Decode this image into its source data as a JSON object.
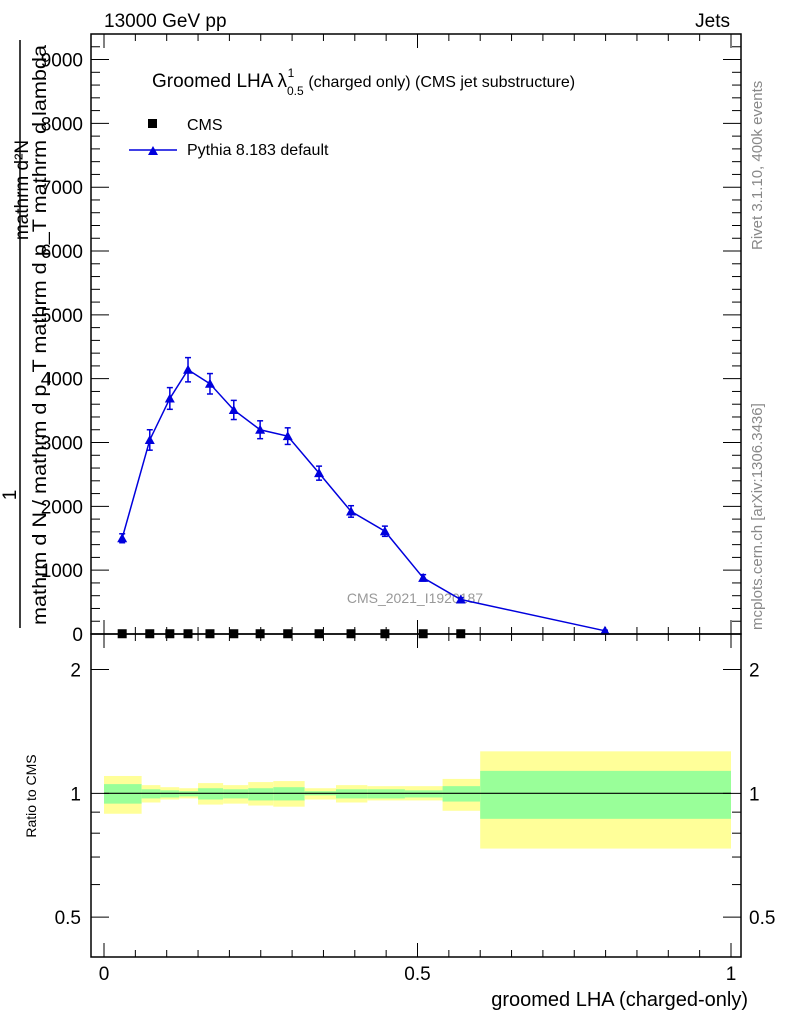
{
  "header": {
    "left": "13000 GeV pp",
    "right": "Jets"
  },
  "side_text": {
    "rivet": "Rivet 3.1.10,  400k events",
    "mcplots": "mcplots.cern.ch [arXiv:1306.3436]"
  },
  "watermark": "CMS_2021_I1920187",
  "chart_data": [
    {
      "type": "line",
      "title": "Groomed LHA",
      "title_symbol": "λ",
      "title_sup": "1",
      "title_sub": "0.5",
      "title_suffix": "(charged only) (CMS jet substructure)",
      "ylabel_num": "mathrm d²N",
      "ylabel_den": "mathrm d N / mathrm d p_T mathrm d p_T mathrm d lambda",
      "ylabel_one": "1",
      "ylabel_full": "1 / mathrm d N / mathrm d p_T  mathrm d²N / mathrm d p_T mathrm d lambda",
      "xlim": [
        0,
        1
      ],
      "ylim": [
        0,
        9400
      ],
      "yticks": [
        "0",
        "1000",
        "2000",
        "3000",
        "4000",
        "5000",
        "6000",
        "7000",
        "8000",
        "9000"
      ],
      "legend": [
        {
          "name": "CMS",
          "marker": "square",
          "color": "#000000"
        },
        {
          "name": "Pythia 8.183 default",
          "marker": "triangle",
          "color": "#0000dd"
        }
      ],
      "legend_placement": "top-left",
      "series": [
        {
          "name": "CMS",
          "x": [
            0.029,
            0.073,
            0.105,
            0.134,
            0.169,
            0.207,
            0.249,
            0.293,
            0.343,
            0.394,
            0.448,
            0.509,
            0.569
          ],
          "y": [
            4,
            4,
            4,
            4,
            4,
            4,
            4,
            4,
            4,
            4,
            4,
            4,
            4
          ]
        },
        {
          "name": "Pythia 8.183 default",
          "x": [
            0.029,
            0.073,
            0.105,
            0.134,
            0.169,
            0.207,
            0.249,
            0.293,
            0.343,
            0.394,
            0.448,
            0.509,
            0.569,
            0.799
          ],
          "y": [
            1500,
            3040,
            3690,
            4140,
            3920,
            3510,
            3200,
            3100,
            2520,
            1920,
            1610,
            880,
            540,
            50
          ],
          "yerr": [
            70,
            160,
            170,
            190,
            160,
            150,
            140,
            130,
            110,
            90,
            80,
            50,
            30,
            10
          ]
        }
      ]
    },
    {
      "type": "area",
      "ylabel": "Ratio to CMS",
      "xlabel": "groomed LHA (charged-only)",
      "xticks": [
        "0",
        "0.5",
        "1"
      ],
      "yticks": [
        "0.5",
        "1",
        "2"
      ],
      "yscale": "log",
      "ylim": [
        0.4,
        2.44
      ],
      "bin_edges": [
        0,
        0.06,
        0.09,
        0.12,
        0.15,
        0.19,
        0.23,
        0.27,
        0.32,
        0.37,
        0.42,
        0.48,
        0.54,
        0.6,
        1.0
      ],
      "yellow_band": {
        "hi": [
          1.102,
          1.047,
          1.035,
          1.029,
          1.059,
          1.047,
          1.065,
          1.071,
          1.029,
          1.047,
          1.041,
          1.041,
          1.084,
          1.265
        ],
        "lo": [
          0.892,
          0.95,
          0.966,
          0.972,
          0.939,
          0.944,
          0.934,
          0.928,
          0.966,
          0.95,
          0.961,
          0.961,
          0.907,
          0.734
        ]
      },
      "green_band": {
        "hi": [
          1.053,
          1.023,
          1.017,
          1.012,
          1.029,
          1.023,
          1.029,
          1.035,
          1.012,
          1.023,
          1.023,
          1.017,
          1.041,
          1.134
        ],
        "lo": [
          0.944,
          0.972,
          0.977,
          0.983,
          0.966,
          0.972,
          0.961,
          0.961,
          0.989,
          0.972,
          0.972,
          0.977,
          0.955,
          0.867
        ]
      },
      "reference": 1,
      "colors": {
        "yellow": "#ffff99",
        "green": "#99ff99",
        "line": "#000000"
      }
    }
  ]
}
